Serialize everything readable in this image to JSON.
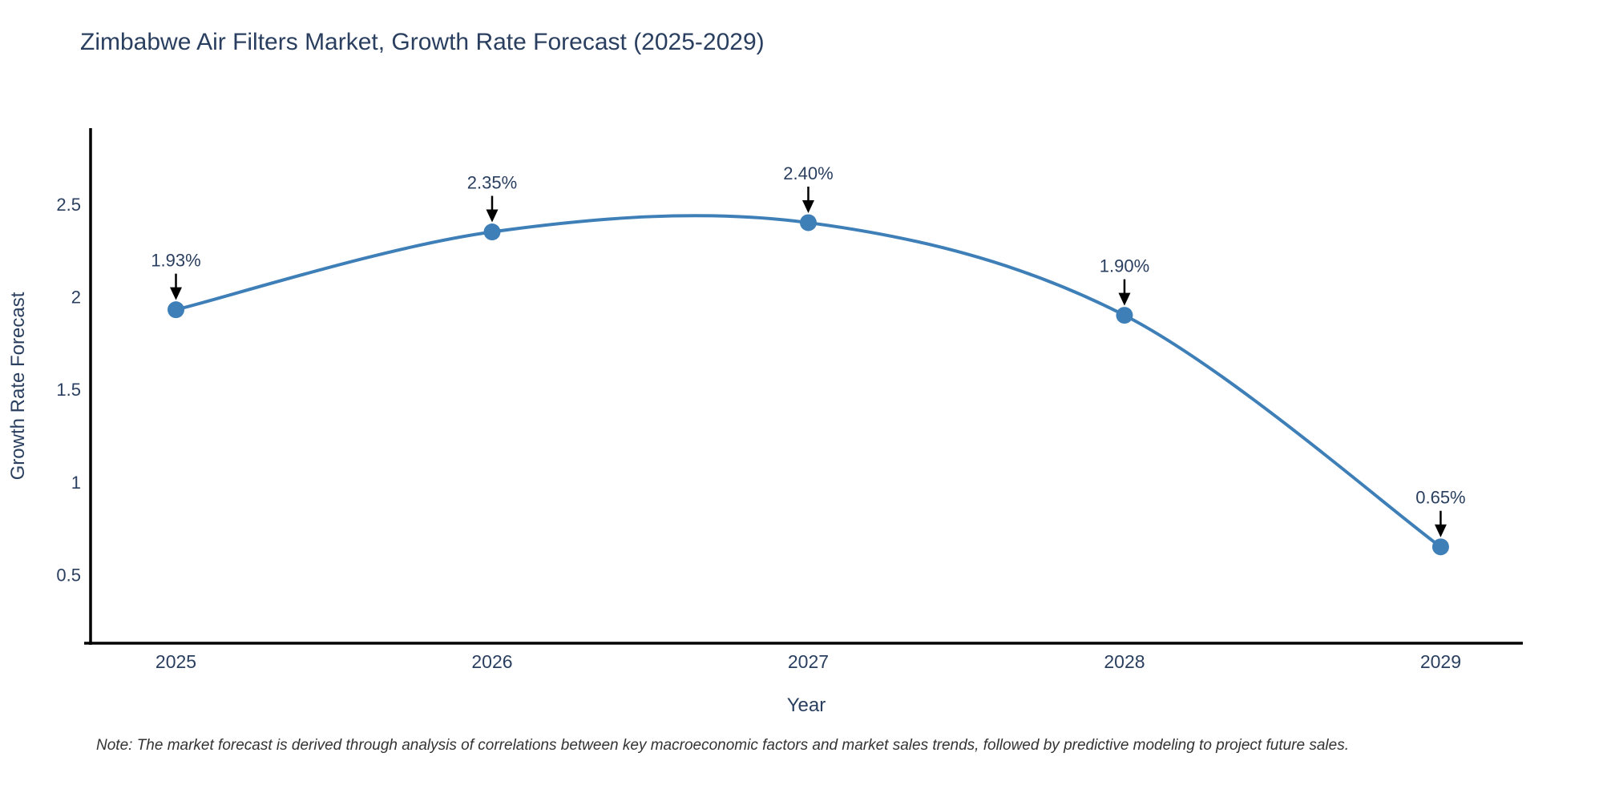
{
  "chart_data": {
    "type": "line",
    "title": "Zimbabwe Air Filters Market, Growth Rate Forecast (2025-2029)",
    "xlabel": "Year",
    "ylabel": "Growth Rate Forecast",
    "x": [
      2025,
      2026,
      2027,
      2028,
      2029
    ],
    "values": [
      1.93,
      2.35,
      2.4,
      1.9,
      0.65
    ],
    "point_labels": [
      "1.93%",
      "2.35%",
      "2.40%",
      "1.90%",
      "0.65%"
    ],
    "xticks": [
      "2025",
      "2026",
      "2027",
      "2028",
      "2029"
    ],
    "yticks": [
      0.5,
      1,
      1.5,
      2,
      2.5
    ],
    "xlim": [
      2024.73,
      2029.26
    ],
    "ylim": [
      0.13,
      2.91
    ],
    "line_shape": "spline",
    "grid": false,
    "legend_position": "none",
    "colors": {
      "line": "#3f7fb8",
      "marker": "#3f7fb8",
      "arrow": "#000000",
      "axis": "#000000",
      "text": "#2a3f5f",
      "note_text": "#333333",
      "background": "#ffffff"
    },
    "note": "Note: The market forecast is derived through analysis of correlations between key macroeconomic factors and market sales trends, followed by predictive modeling to project future sales."
  }
}
